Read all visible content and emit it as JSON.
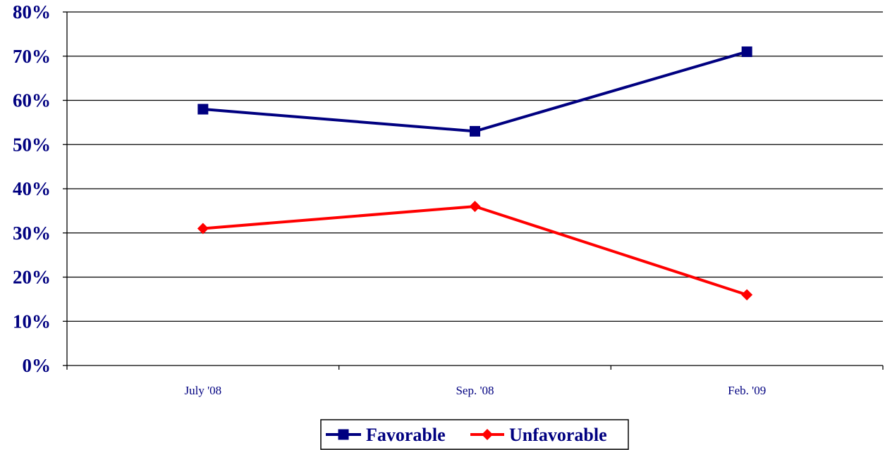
{
  "chart_data": {
    "type": "line",
    "categories": [
      "July '08",
      "Sep. '08",
      "Feb. '09"
    ],
    "series": [
      {
        "name": "Favorable",
        "values": [
          58,
          53,
          71
        ],
        "color": "#000080",
        "marker": "square"
      },
      {
        "name": "Unfavorable",
        "values": [
          31,
          36,
          16
        ],
        "color": "#ff0000",
        "marker": "diamond"
      }
    ],
    "ylim": [
      0,
      80
    ],
    "yticks": [
      0,
      10,
      20,
      30,
      40,
      50,
      60,
      70,
      80
    ],
    "ytick_labels": [
      "0%",
      "10%",
      "20%",
      "30%",
      "40%",
      "50%",
      "60%",
      "70%",
      "80%"
    ],
    "grid": true,
    "legend_position": "bottom-center",
    "title": "",
    "xlabel": "",
    "ylabel": ""
  }
}
